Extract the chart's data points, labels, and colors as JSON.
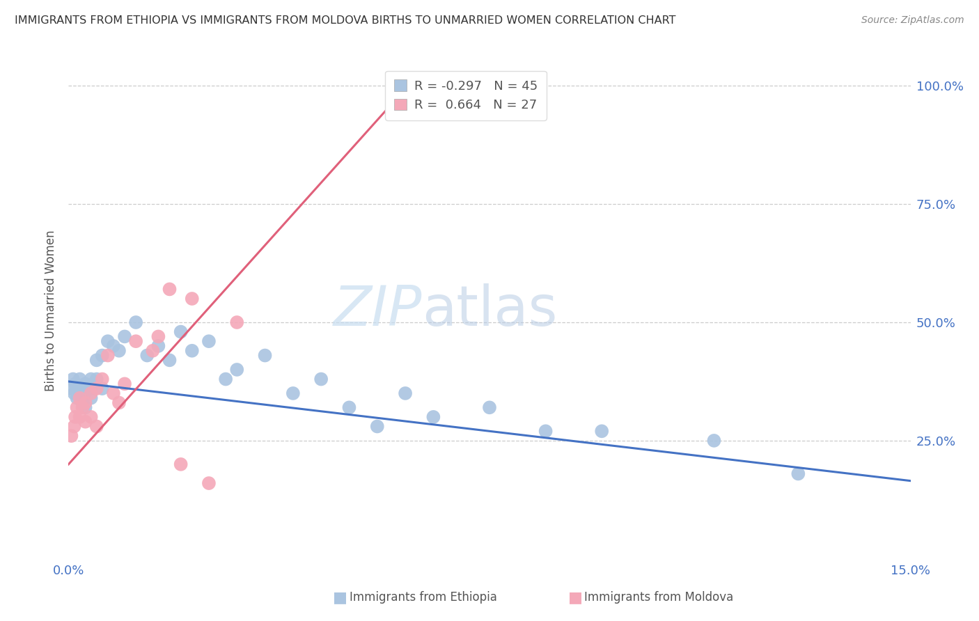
{
  "title": "IMMIGRANTS FROM ETHIOPIA VS IMMIGRANTS FROM MOLDOVA BIRTHS TO UNMARRIED WOMEN CORRELATION CHART",
  "source": "Source: ZipAtlas.com",
  "ylabel": "Births to Unmarried Women",
  "ethiopia_R": -0.297,
  "ethiopia_N": 45,
  "moldova_R": 0.664,
  "moldova_N": 27,
  "ethiopia_color": "#aac4e0",
  "moldova_color": "#f4a8b8",
  "ethiopia_line_color": "#4472c4",
  "moldova_line_color": "#e0607a",
  "watermark_zip": "ZIP",
  "watermark_atlas": "atlas",
  "background_color": "#ffffff",
  "xlim": [
    0.0,
    0.15
  ],
  "ylim": [
    0.0,
    1.05
  ],
  "ethiopia_x": [
    0.0005,
    0.0008,
    0.001,
    0.0012,
    0.0015,
    0.002,
    0.002,
    0.0022,
    0.0025,
    0.003,
    0.003,
    0.003,
    0.0035,
    0.004,
    0.004,
    0.004,
    0.005,
    0.005,
    0.006,
    0.006,
    0.007,
    0.008,
    0.009,
    0.01,
    0.012,
    0.014,
    0.016,
    0.018,
    0.02,
    0.022,
    0.025,
    0.028,
    0.03,
    0.035,
    0.04,
    0.045,
    0.05,
    0.055,
    0.06,
    0.065,
    0.075,
    0.085,
    0.095,
    0.115,
    0.13
  ],
  "ethiopia_y": [
    0.36,
    0.38,
    0.35,
    0.37,
    0.34,
    0.36,
    0.38,
    0.35,
    0.33,
    0.37,
    0.35,
    0.32,
    0.36,
    0.38,
    0.34,
    0.36,
    0.42,
    0.38,
    0.43,
    0.36,
    0.46,
    0.45,
    0.44,
    0.47,
    0.5,
    0.43,
    0.45,
    0.42,
    0.48,
    0.44,
    0.46,
    0.38,
    0.4,
    0.43,
    0.35,
    0.38,
    0.32,
    0.28,
    0.35,
    0.3,
    0.32,
    0.27,
    0.27,
    0.25,
    0.18
  ],
  "moldova_x": [
    0.0005,
    0.001,
    0.0012,
    0.0015,
    0.002,
    0.002,
    0.0025,
    0.003,
    0.003,
    0.004,
    0.004,
    0.005,
    0.005,
    0.006,
    0.007,
    0.008,
    0.009,
    0.01,
    0.012,
    0.015,
    0.016,
    0.018,
    0.02,
    0.022,
    0.025,
    0.03,
    0.058
  ],
  "moldova_y": [
    0.26,
    0.28,
    0.3,
    0.32,
    0.34,
    0.3,
    0.32,
    0.29,
    0.33,
    0.35,
    0.3,
    0.36,
    0.28,
    0.38,
    0.43,
    0.35,
    0.33,
    0.37,
    0.46,
    0.44,
    0.47,
    0.57,
    0.2,
    0.55,
    0.16,
    0.5,
    1.01
  ],
  "eth_line_x0": 0.0,
  "eth_line_x1": 0.15,
  "eth_line_y0": 0.375,
  "eth_line_y1": 0.165,
  "mol_line_x0": 0.0,
  "mol_line_x1": 0.062,
  "mol_line_y0": 0.2,
  "mol_line_y1": 1.02
}
